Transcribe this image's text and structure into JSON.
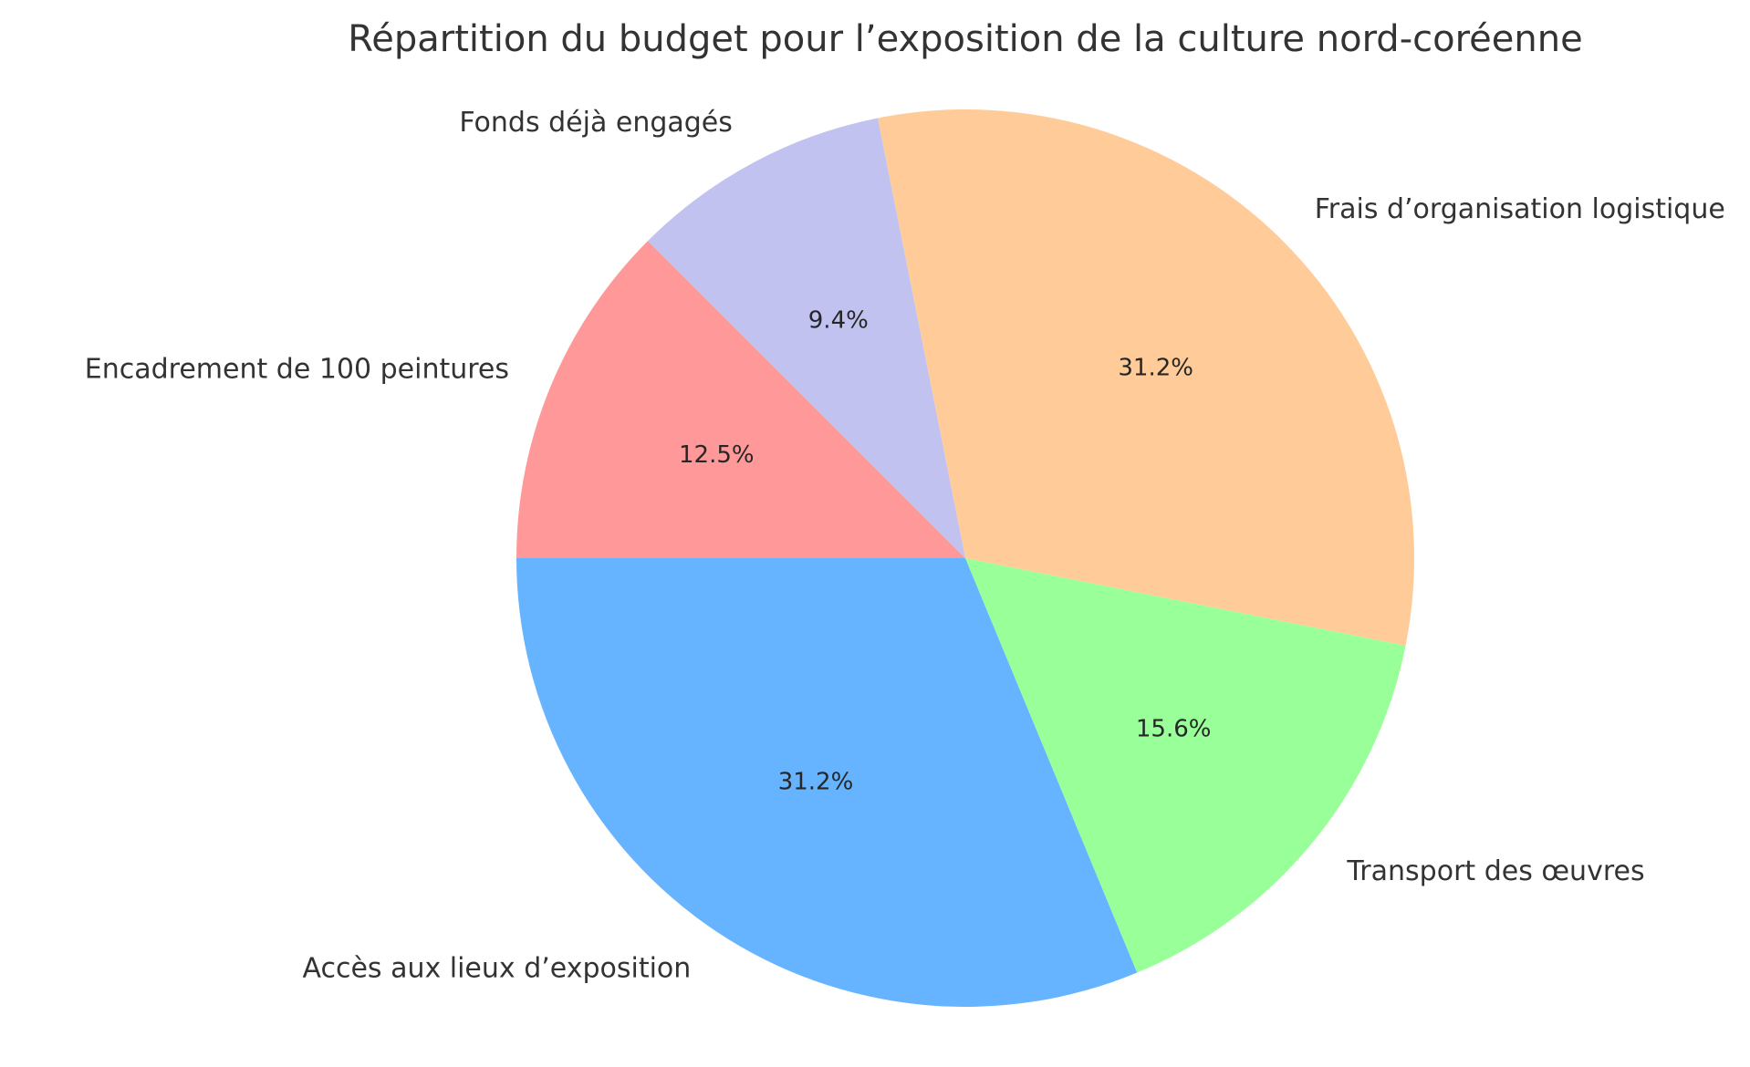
{
  "chart_data": {
    "type": "pie",
    "title": "Répartition du budget pour l’exposition de la culture nord-coréenne",
    "start_angle_deg": 135,
    "direction": "counterclockwise",
    "slices": [
      {
        "label": "Encadrement de 100 peintures",
        "value": 12.5,
        "pct_label": "12.5%",
        "color": "#FF9999"
      },
      {
        "label": "Accès aux lieux d’exposition",
        "value": 31.25,
        "pct_label": "31.2%",
        "color": "#66B3FF"
      },
      {
        "label": "Transport des œuvres",
        "value": 15.625,
        "pct_label": "15.6%",
        "color": "#99FF99"
      },
      {
        "label": "Frais d’organisation logistique",
        "value": 31.25,
        "pct_label": "31.2%",
        "color": "#FFCC99"
      },
      {
        "label": "Fonds déjà engagés",
        "value": 9.375,
        "pct_label": "9.4%",
        "color": "#C2C2F0"
      }
    ]
  }
}
